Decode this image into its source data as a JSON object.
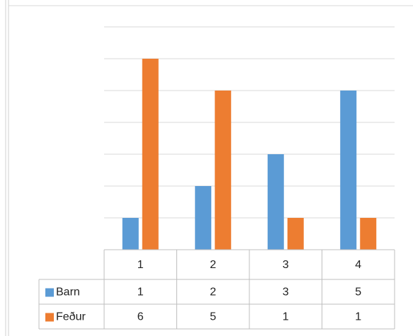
{
  "chart_data": {
    "type": "bar",
    "categories": [
      "1",
      "2",
      "3",
      "4"
    ],
    "series": [
      {
        "name": "Barn",
        "color": "#5b9bd5",
        "values": [
          1,
          2,
          3,
          5
        ]
      },
      {
        "name": "Feður",
        "color": "#ed7d31",
        "values": [
          6,
          5,
          1,
          1
        ]
      }
    ],
    "ylim": [
      0,
      7
    ],
    "yticks": [
      0,
      1,
      2,
      3,
      4,
      5,
      6,
      7
    ],
    "grid": true,
    "data_table": true
  }
}
